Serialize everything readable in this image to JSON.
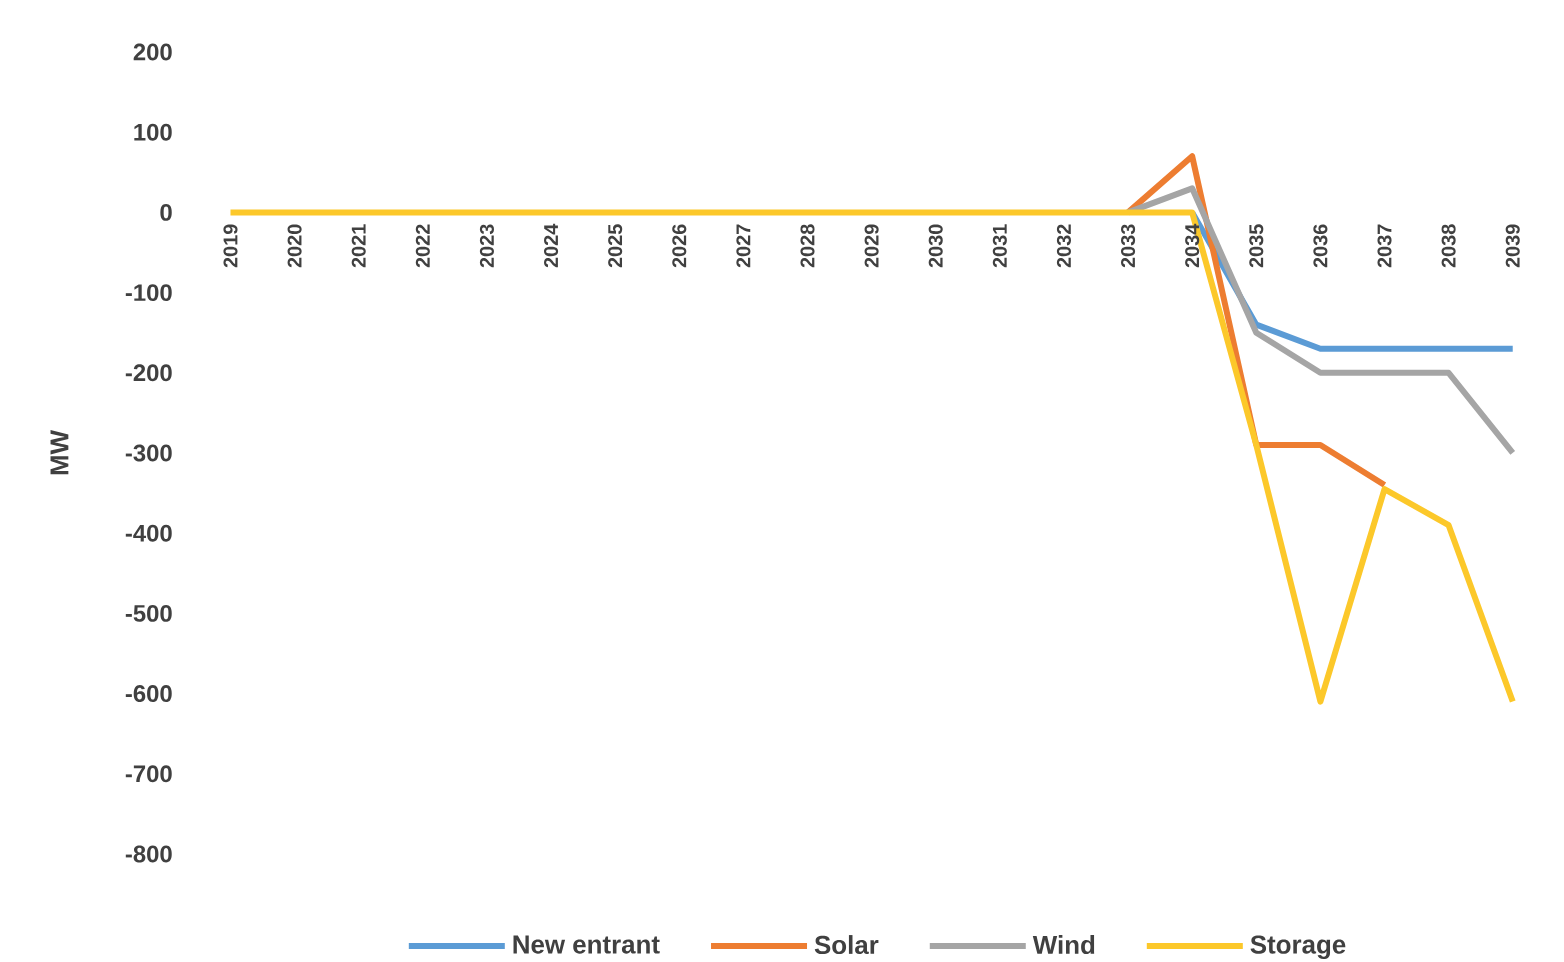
{
  "chart_data": {
    "type": "line",
    "ylabel": "MW",
    "categories": [
      "2019",
      "2020",
      "2021",
      "2022",
      "2023",
      "2024",
      "2025",
      "2026",
      "2027",
      "2028",
      "2029",
      "2030",
      "2031",
      "2032",
      "2033",
      "2034",
      "2035",
      "2036",
      "2037",
      "2038",
      "2039"
    ],
    "series": [
      {
        "name": "New entrant",
        "color": "#5b9bd5",
        "values": [
          null,
          null,
          null,
          null,
          null,
          null,
          null,
          null,
          null,
          null,
          null,
          null,
          null,
          null,
          null,
          0,
          -140,
          -170,
          -170,
          -170,
          -170
        ]
      },
      {
        "name": "Solar",
        "color": "#ed7d31",
        "values": [
          null,
          null,
          null,
          null,
          null,
          null,
          null,
          null,
          null,
          null,
          null,
          null,
          null,
          null,
          0,
          70,
          -290,
          -290,
          -340,
          null,
          null
        ]
      },
      {
        "name": "Wind",
        "color": "#a5a5a5",
        "values": [
          null,
          null,
          null,
          null,
          null,
          null,
          null,
          null,
          null,
          null,
          null,
          null,
          null,
          null,
          0,
          30,
          -150,
          -200,
          -200,
          -200,
          -300
        ]
      },
      {
        "name": "Storage",
        "color": "#fcc82a",
        "values": [
          0,
          0,
          0,
          0,
          0,
          0,
          0,
          0,
          0,
          0,
          0,
          0,
          0,
          0,
          0,
          0,
          -290,
          -610,
          -345,
          -390,
          -610
        ]
      }
    ],
    "ylim": [
      -800,
      200
    ],
    "yticks": [
      -800,
      -700,
      -600,
      -500,
      -400,
      -300,
      -200,
      -100,
      0,
      100,
      200
    ],
    "grid": false,
    "legend": "bottom",
    "marker": "none",
    "line_style": "solid"
  }
}
